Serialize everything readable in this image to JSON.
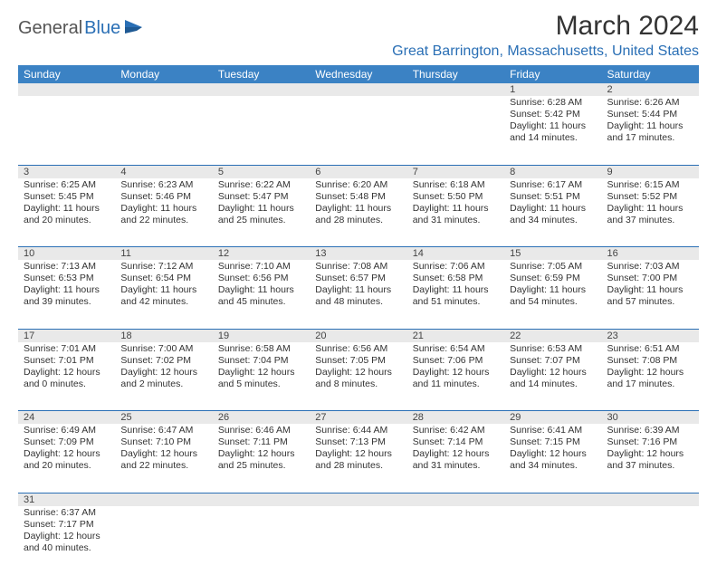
{
  "brand": {
    "part1": "General",
    "part2": "Blue",
    "icon_color": "#2a6fb5"
  },
  "title": "March 2024",
  "location": "Great Barrington, Massachusetts, United States",
  "colors": {
    "header_bg": "#3b82c4",
    "header_fg": "#ffffff",
    "accent": "#2a6fb5",
    "daynum_bg": "#e9e9e9",
    "text": "#333333"
  },
  "dow": [
    "Sunday",
    "Monday",
    "Tuesday",
    "Wednesday",
    "Thursday",
    "Friday",
    "Saturday"
  ],
  "weeks": [
    [
      null,
      null,
      null,
      null,
      null,
      {
        "n": "1",
        "sr": "Sunrise: 6:28 AM",
        "ss": "Sunset: 5:42 PM",
        "d1": "Daylight: 11 hours",
        "d2": "and 14 minutes."
      },
      {
        "n": "2",
        "sr": "Sunrise: 6:26 AM",
        "ss": "Sunset: 5:44 PM",
        "d1": "Daylight: 11 hours",
        "d2": "and 17 minutes."
      }
    ],
    [
      {
        "n": "3",
        "sr": "Sunrise: 6:25 AM",
        "ss": "Sunset: 5:45 PM",
        "d1": "Daylight: 11 hours",
        "d2": "and 20 minutes."
      },
      {
        "n": "4",
        "sr": "Sunrise: 6:23 AM",
        "ss": "Sunset: 5:46 PM",
        "d1": "Daylight: 11 hours",
        "d2": "and 22 minutes."
      },
      {
        "n": "5",
        "sr": "Sunrise: 6:22 AM",
        "ss": "Sunset: 5:47 PM",
        "d1": "Daylight: 11 hours",
        "d2": "and 25 minutes."
      },
      {
        "n": "6",
        "sr": "Sunrise: 6:20 AM",
        "ss": "Sunset: 5:48 PM",
        "d1": "Daylight: 11 hours",
        "d2": "and 28 minutes."
      },
      {
        "n": "7",
        "sr": "Sunrise: 6:18 AM",
        "ss": "Sunset: 5:50 PM",
        "d1": "Daylight: 11 hours",
        "d2": "and 31 minutes."
      },
      {
        "n": "8",
        "sr": "Sunrise: 6:17 AM",
        "ss": "Sunset: 5:51 PM",
        "d1": "Daylight: 11 hours",
        "d2": "and 34 minutes."
      },
      {
        "n": "9",
        "sr": "Sunrise: 6:15 AM",
        "ss": "Sunset: 5:52 PM",
        "d1": "Daylight: 11 hours",
        "d2": "and 37 minutes."
      }
    ],
    [
      {
        "n": "10",
        "sr": "Sunrise: 7:13 AM",
        "ss": "Sunset: 6:53 PM",
        "d1": "Daylight: 11 hours",
        "d2": "and 39 minutes."
      },
      {
        "n": "11",
        "sr": "Sunrise: 7:12 AM",
        "ss": "Sunset: 6:54 PM",
        "d1": "Daylight: 11 hours",
        "d2": "and 42 minutes."
      },
      {
        "n": "12",
        "sr": "Sunrise: 7:10 AM",
        "ss": "Sunset: 6:56 PM",
        "d1": "Daylight: 11 hours",
        "d2": "and 45 minutes."
      },
      {
        "n": "13",
        "sr": "Sunrise: 7:08 AM",
        "ss": "Sunset: 6:57 PM",
        "d1": "Daylight: 11 hours",
        "d2": "and 48 minutes."
      },
      {
        "n": "14",
        "sr": "Sunrise: 7:06 AM",
        "ss": "Sunset: 6:58 PM",
        "d1": "Daylight: 11 hours",
        "d2": "and 51 minutes."
      },
      {
        "n": "15",
        "sr": "Sunrise: 7:05 AM",
        "ss": "Sunset: 6:59 PM",
        "d1": "Daylight: 11 hours",
        "d2": "and 54 minutes."
      },
      {
        "n": "16",
        "sr": "Sunrise: 7:03 AM",
        "ss": "Sunset: 7:00 PM",
        "d1": "Daylight: 11 hours",
        "d2": "and 57 minutes."
      }
    ],
    [
      {
        "n": "17",
        "sr": "Sunrise: 7:01 AM",
        "ss": "Sunset: 7:01 PM",
        "d1": "Daylight: 12 hours",
        "d2": "and 0 minutes."
      },
      {
        "n": "18",
        "sr": "Sunrise: 7:00 AM",
        "ss": "Sunset: 7:02 PM",
        "d1": "Daylight: 12 hours",
        "d2": "and 2 minutes."
      },
      {
        "n": "19",
        "sr": "Sunrise: 6:58 AM",
        "ss": "Sunset: 7:04 PM",
        "d1": "Daylight: 12 hours",
        "d2": "and 5 minutes."
      },
      {
        "n": "20",
        "sr": "Sunrise: 6:56 AM",
        "ss": "Sunset: 7:05 PM",
        "d1": "Daylight: 12 hours",
        "d2": "and 8 minutes."
      },
      {
        "n": "21",
        "sr": "Sunrise: 6:54 AM",
        "ss": "Sunset: 7:06 PM",
        "d1": "Daylight: 12 hours",
        "d2": "and 11 minutes."
      },
      {
        "n": "22",
        "sr": "Sunrise: 6:53 AM",
        "ss": "Sunset: 7:07 PM",
        "d1": "Daylight: 12 hours",
        "d2": "and 14 minutes."
      },
      {
        "n": "23",
        "sr": "Sunrise: 6:51 AM",
        "ss": "Sunset: 7:08 PM",
        "d1": "Daylight: 12 hours",
        "d2": "and 17 minutes."
      }
    ],
    [
      {
        "n": "24",
        "sr": "Sunrise: 6:49 AM",
        "ss": "Sunset: 7:09 PM",
        "d1": "Daylight: 12 hours",
        "d2": "and 20 minutes."
      },
      {
        "n": "25",
        "sr": "Sunrise: 6:47 AM",
        "ss": "Sunset: 7:10 PM",
        "d1": "Daylight: 12 hours",
        "d2": "and 22 minutes."
      },
      {
        "n": "26",
        "sr": "Sunrise: 6:46 AM",
        "ss": "Sunset: 7:11 PM",
        "d1": "Daylight: 12 hours",
        "d2": "and 25 minutes."
      },
      {
        "n": "27",
        "sr": "Sunrise: 6:44 AM",
        "ss": "Sunset: 7:13 PM",
        "d1": "Daylight: 12 hours",
        "d2": "and 28 minutes."
      },
      {
        "n": "28",
        "sr": "Sunrise: 6:42 AM",
        "ss": "Sunset: 7:14 PM",
        "d1": "Daylight: 12 hours",
        "d2": "and 31 minutes."
      },
      {
        "n": "29",
        "sr": "Sunrise: 6:41 AM",
        "ss": "Sunset: 7:15 PM",
        "d1": "Daylight: 12 hours",
        "d2": "and 34 minutes."
      },
      {
        "n": "30",
        "sr": "Sunrise: 6:39 AM",
        "ss": "Sunset: 7:16 PM",
        "d1": "Daylight: 12 hours",
        "d2": "and 37 minutes."
      }
    ],
    [
      {
        "n": "31",
        "sr": "Sunrise: 6:37 AM",
        "ss": "Sunset: 7:17 PM",
        "d1": "Daylight: 12 hours",
        "d2": "and 40 minutes."
      },
      null,
      null,
      null,
      null,
      null,
      null
    ]
  ]
}
